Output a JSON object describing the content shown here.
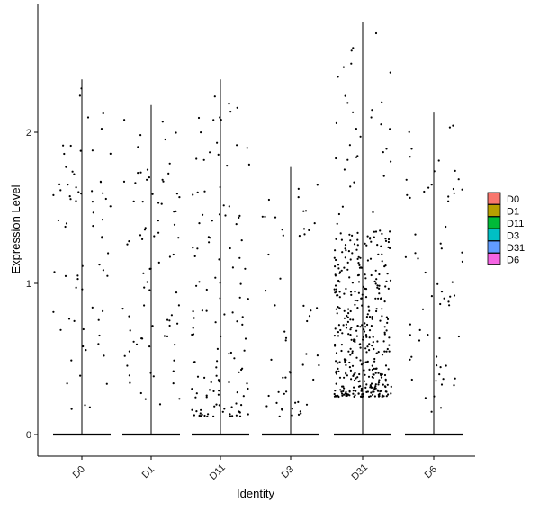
{
  "chart_data": {
    "type": "scatter",
    "subtype": "violin-jitter",
    "title": "",
    "xlabel": "Identity",
    "ylabel": "Expression Level",
    "ylim": [
      -0.15,
      2.85
    ],
    "yticks": [
      0,
      1,
      2
    ],
    "categories": [
      "D0",
      "D1",
      "D11",
      "D3",
      "D31",
      "D6"
    ],
    "colors": {
      "D0": "#F8766D",
      "D1": "#B79F00",
      "D11": "#00BA38",
      "D3": "#00BFC4",
      "D31": "#619CFF",
      "D6": "#F564E3"
    },
    "max_values": [
      2.35,
      2.18,
      2.35,
      1.77,
      2.73,
      2.13
    ],
    "nonzero_counts": [
      70,
      80,
      130,
      55,
      420,
      65
    ],
    "zero_fraction_note": "",
    "grid": false,
    "legend": {
      "position": "right",
      "entries": [
        "D0",
        "D1",
        "D11",
        "D3",
        "D31",
        "D6"
      ]
    }
  }
}
